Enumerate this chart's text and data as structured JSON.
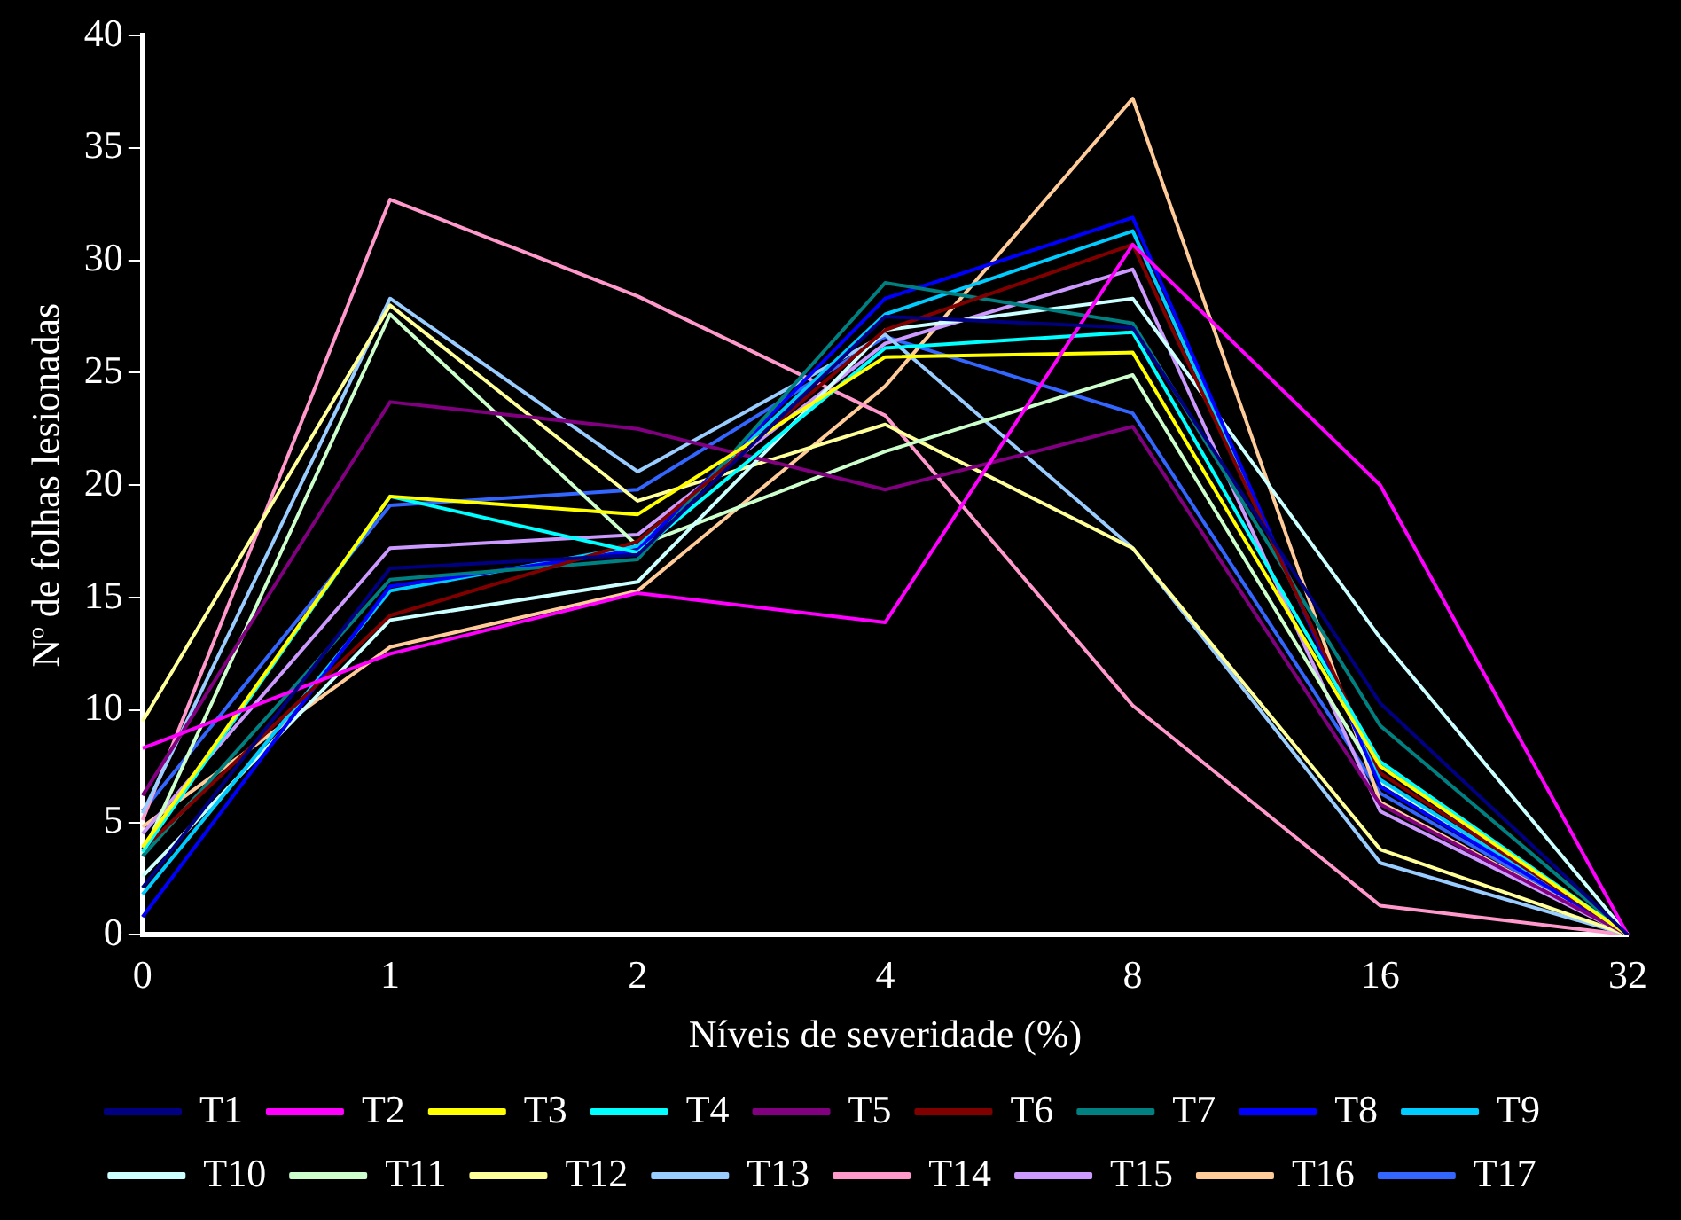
{
  "chart_data": {
    "type": "line",
    "xlabel": "Níveis de severidade (%)",
    "ylabel": "Nº de folhas lesionadas",
    "categories": [
      "0",
      "1",
      "2",
      "4",
      "8",
      "16",
      "32"
    ],
    "ylim": [
      0,
      40
    ],
    "yticks": [
      0,
      5,
      10,
      15,
      20,
      25,
      30,
      35,
      40
    ],
    "grid": false,
    "legend": "bottom",
    "marker": "none",
    "line_style": "solid",
    "series": [
      {
        "name": "T1",
        "color": "#000080",
        "values": [
          2.1,
          16.3,
          16.9,
          27.5,
          27.0,
          10.3,
          0
        ]
      },
      {
        "name": "T2",
        "color": "#ff00ff",
        "values": [
          8.3,
          12.5,
          15.2,
          13.9,
          30.7,
          20.0,
          0
        ]
      },
      {
        "name": "T3",
        "color": "#ffff00",
        "values": [
          3.9,
          19.5,
          18.7,
          25.7,
          25.9,
          7.5,
          0
        ]
      },
      {
        "name": "T4",
        "color": "#00ffff",
        "values": [
          3.7,
          19.5,
          17.0,
          26.1,
          26.8,
          7.7,
          0
        ]
      },
      {
        "name": "T5",
        "color": "#800080",
        "values": [
          6.2,
          23.7,
          22.5,
          19.8,
          22.6,
          5.8,
          0
        ]
      },
      {
        "name": "T6",
        "color": "#800000",
        "values": [
          3.8,
          14.2,
          17.5,
          26.9,
          30.7,
          7.2,
          0
        ]
      },
      {
        "name": "T7",
        "color": "#008080",
        "values": [
          3.5,
          15.8,
          16.7,
          29.0,
          27.2,
          9.3,
          0
        ]
      },
      {
        "name": "T8",
        "color": "#0000ff",
        "values": [
          0.8,
          15.5,
          17.1,
          28.3,
          31.9,
          6.6,
          0
        ]
      },
      {
        "name": "T9",
        "color": "#00ccff",
        "values": [
          1.8,
          15.3,
          17.3,
          27.6,
          31.3,
          6.9,
          0
        ]
      },
      {
        "name": "T10",
        "color": "#ccffff",
        "values": [
          2.6,
          14.0,
          15.7,
          26.9,
          28.3,
          13.2,
          0
        ]
      },
      {
        "name": "T11",
        "color": "#ccffcc",
        "values": [
          3.6,
          27.6,
          17.3,
          21.5,
          24.9,
          6.8,
          0
        ]
      },
      {
        "name": "T12",
        "color": "#ffff99",
        "values": [
          9.5,
          28.0,
          19.3,
          22.7,
          17.2,
          3.8,
          0
        ]
      },
      {
        "name": "T13",
        "color": "#99ccff",
        "values": [
          5.4,
          28.3,
          20.6,
          26.7,
          17.2,
          3.2,
          0
        ]
      },
      {
        "name": "T14",
        "color": "#ff99cc",
        "values": [
          5.1,
          32.7,
          28.4,
          23.1,
          10.2,
          1.3,
          0
        ]
      },
      {
        "name": "T15",
        "color": "#cc99ff",
        "values": [
          4.5,
          17.2,
          17.8,
          26.3,
          29.6,
          5.5,
          0
        ]
      },
      {
        "name": "T16",
        "color": "#ffcc99",
        "values": [
          4.8,
          12.8,
          15.3,
          24.4,
          37.2,
          5.9,
          0
        ]
      },
      {
        "name": "T17",
        "color": "#3366ff",
        "values": [
          5.5,
          19.1,
          19.8,
          26.6,
          23.2,
          6.3,
          0
        ]
      }
    ]
  }
}
